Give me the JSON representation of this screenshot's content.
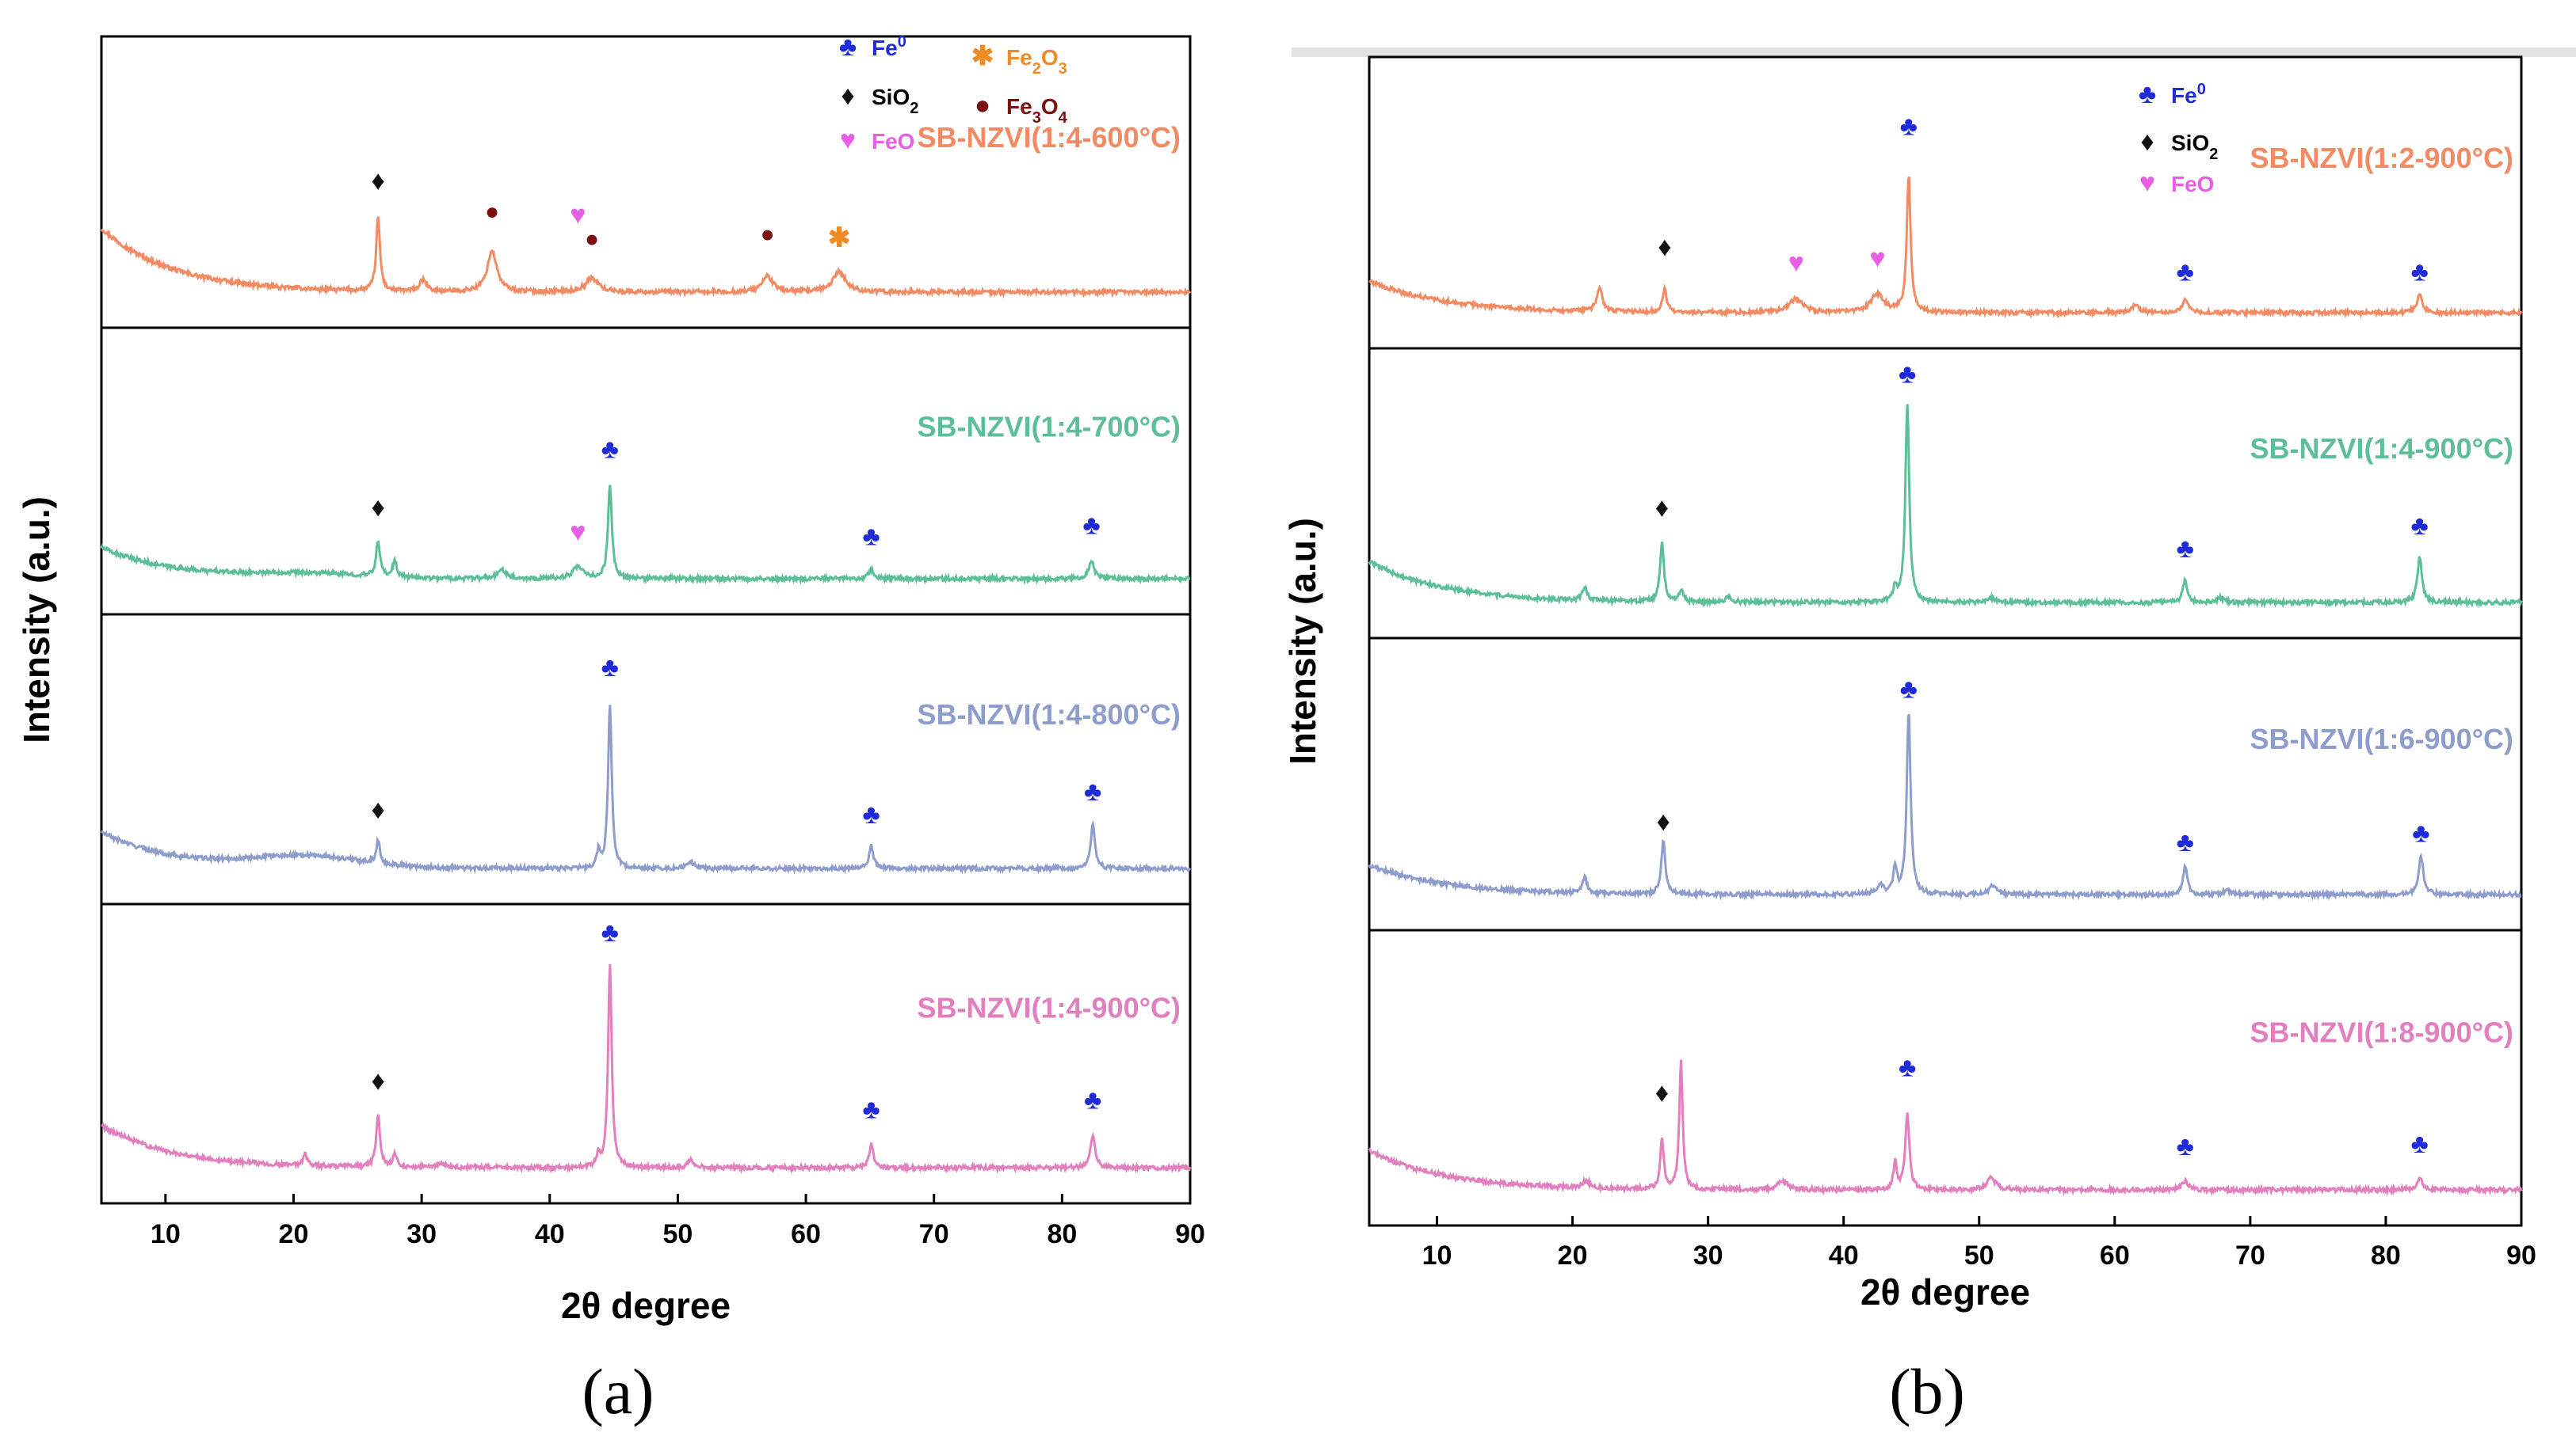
{
  "figure": {
    "panel_labels": [
      "(a)",
      "(b)"
    ]
  },
  "colors": {
    "fe0": "#1f2bd8",
    "sio2": "#111111",
    "fe2o3": "#f08a24",
    "fe3o4": "#7a1010",
    "feo": "#e85fe6",
    "orange": "#f28b63",
    "green": "#5cbf98",
    "blue": "#8f9dcd",
    "pink": "#e27fbe"
  },
  "markers": {
    "fe0": "♣",
    "sio2": "♦",
    "fe2o3": "✱",
    "fe3o4": "●",
    "feo": "♥"
  },
  "chart_data": [
    {
      "type": "line",
      "id": "a",
      "label": "(a)",
      "xlabel": "2θ degree",
      "ylabel": "Intensity (a.u.)",
      "xlim": [
        5,
        90
      ],
      "xticks": [
        10,
        20,
        30,
        40,
        50,
        60,
        70,
        80,
        90
      ],
      "legend": [
        {
          "key": "fe0",
          "label": "Fe",
          "sup": "0",
          "sub": ""
        },
        {
          "key": "fe2o3",
          "label": "Fe",
          "sub": "2",
          "label2": "O",
          "sub2": "3"
        },
        {
          "key": "sio2",
          "label": "SiO",
          "sub": "2"
        },
        {
          "key": "fe3o4",
          "label": "Fe",
          "sub": "3",
          "label2": "O",
          "sub2": "4"
        },
        {
          "key": "feo",
          "label": "FeO",
          "sub": ""
        }
      ],
      "series": [
        {
          "name": "SB-NZVI(1:4-600°C)",
          "color": "orange",
          "start": 0.28,
          "end": 0.0,
          "hump": 0.0,
          "peaks": [
            [
              26.6,
              0.32,
              0.18
            ],
            [
              30.1,
              0.05,
              0.3
            ],
            [
              35.5,
              0.18,
              0.45
            ],
            [
              43.3,
              0.06,
              0.6
            ],
            [
              57.0,
              0.07,
              0.5
            ],
            [
              62.6,
              0.09,
              0.6
            ]
          ],
          "markers": [
            [
              "sio2",
              26.6,
              0.45
            ],
            [
              "fe3o4",
              35.5,
              0.32
            ],
            [
              "feo",
              42.2,
              0.3
            ],
            [
              "fe3o4",
              43.3,
              0.2
            ],
            [
              "fe3o4",
              57.0,
              0.22
            ],
            [
              "fe2o3",
              62.6,
              0.2
            ]
          ]
        },
        {
          "name": "SB-NZVI(1:4-700°C)",
          "color": "green",
          "start": 0.14,
          "end": 0.0,
          "hump": 0.02,
          "peaks": [
            [
              26.6,
              0.16,
              0.18
            ],
            [
              27.9,
              0.07,
              0.2
            ],
            [
              36.3,
              0.04,
              0.4
            ],
            [
              42.2,
              0.05,
              0.5
            ],
            [
              44.7,
              0.42,
              0.18
            ],
            [
              65.1,
              0.04,
              0.25
            ],
            [
              82.3,
              0.08,
              0.25
            ]
          ],
          "markers": [
            [
              "sio2",
              26.6,
              0.28
            ],
            [
              "feo",
              42.2,
              0.17
            ],
            [
              "fe0",
              44.7,
              0.54
            ],
            [
              "fe0",
              65.1,
              0.15
            ],
            [
              "fe0",
              82.3,
              0.2
            ]
          ]
        },
        {
          "name": "SB-NZVI(1:4-800°C)",
          "color": "blue",
          "start": 0.16,
          "end": 0.0,
          "hump": 0.05,
          "peaks": [
            [
              26.6,
              0.1,
              0.18
            ],
            [
              43.8,
              0.07,
              0.15
            ],
            [
              44.7,
              0.73,
              0.17
            ],
            [
              51.0,
              0.03,
              0.3
            ],
            [
              65.1,
              0.1,
              0.2
            ],
            [
              82.4,
              0.2,
              0.2
            ]
          ],
          "markers": [
            [
              "sio2",
              26.6,
              0.22
            ],
            [
              "fe0",
              44.7,
              0.85
            ],
            [
              "fe0",
              65.1,
              0.2
            ],
            [
              "fe0",
              82.4,
              0.3
            ]
          ]
        },
        {
          "name": "SB-NZVI(1:4-900°C)",
          "color": "pink",
          "start": 0.18,
          "end": 0.0,
          "hump": 0.0,
          "peaks": [
            [
              20.9,
              0.05,
              0.2
            ],
            [
              26.6,
              0.22,
              0.18
            ],
            [
              27.9,
              0.05,
              0.2
            ],
            [
              31.5,
              0.02,
              0.3
            ],
            [
              43.8,
              0.05,
              0.15
            ],
            [
              44.7,
              0.86,
              0.17
            ],
            [
              51.0,
              0.03,
              0.3
            ],
            [
              65.1,
              0.1,
              0.2
            ],
            [
              82.4,
              0.13,
              0.22
            ]
          ],
          "markers": [
            [
              "sio2",
              26.6,
              0.33
            ],
            [
              "fe0",
              44.7,
              0.96
            ],
            [
              "fe0",
              65.1,
              0.21
            ],
            [
              "fe0",
              82.4,
              0.25
            ]
          ]
        }
      ]
    },
    {
      "type": "line",
      "id": "b",
      "label": "(b)",
      "xlabel": "2θ degree",
      "ylabel": "Intensity (a.u.)",
      "xlim": [
        5,
        90
      ],
      "xticks": [
        10,
        20,
        30,
        40,
        50,
        60,
        70,
        80,
        90
      ],
      "legend": [
        {
          "key": "fe0",
          "label": "Fe",
          "sup": "0",
          "sub": ""
        },
        {
          "key": "sio2",
          "label": "SiO",
          "sub": "2"
        },
        {
          "key": "feo",
          "label": "FeO",
          "sub": ""
        }
      ],
      "series": [
        {
          "name": "SB-NZVI(1:2-900°C)",
          "color": "orange",
          "start": 0.14,
          "end": 0.0,
          "hump": 0.0,
          "peaks": [
            [
              22.0,
              0.1,
              0.25
            ],
            [
              26.8,
              0.1,
              0.18
            ],
            [
              36.5,
              0.06,
              0.6
            ],
            [
              42.5,
              0.08,
              0.6
            ],
            [
              44.8,
              0.6,
              0.17
            ],
            [
              61.5,
              0.03,
              0.4
            ],
            [
              65.2,
              0.06,
              0.25
            ],
            [
              82.5,
              0.08,
              0.25
            ]
          ],
          "markers": [
            [
              "sio2",
              26.8,
              0.25
            ],
            [
              "feo",
              36.5,
              0.18
            ],
            [
              "feo",
              42.5,
              0.2
            ],
            [
              "fe0",
              44.8,
              0.78
            ],
            [
              "fe0",
              65.2,
              0.14
            ],
            [
              "fe0",
              82.5,
              0.14
            ]
          ]
        },
        {
          "name": "SB-NZVI(1:4-900°C)",
          "color": "green",
          "start": 0.18,
          "end": 0.0,
          "hump": 0.0,
          "peaks": [
            [
              20.9,
              0.06,
              0.2
            ],
            [
              26.6,
              0.26,
              0.17
            ],
            [
              28.0,
              0.05,
              0.2
            ],
            [
              31.5,
              0.02,
              0.3
            ],
            [
              43.8,
              0.06,
              0.15
            ],
            [
              44.7,
              0.88,
              0.17
            ],
            [
              50.9,
              0.02,
              0.3
            ],
            [
              65.2,
              0.1,
              0.2
            ],
            [
              67.8,
              0.02,
              0.3
            ],
            [
              82.5,
              0.2,
              0.2
            ]
          ],
          "markers": [
            [
              "sio2",
              26.6,
              0.38
            ],
            [
              "fe0",
              44.7,
              0.97
            ],
            [
              "fe0",
              65.2,
              0.2
            ],
            [
              "fe0",
              82.5,
              0.3
            ]
          ]
        },
        {
          "name": "SB-NZVI(1:6-900°C)",
          "color": "blue",
          "start": 0.13,
          "end": 0.0,
          "hump": 0.0,
          "peaks": [
            [
              20.9,
              0.07,
              0.2
            ],
            [
              26.7,
              0.24,
              0.17
            ],
            [
              42.7,
              0.04,
              0.3
            ],
            [
              43.8,
              0.12,
              0.15
            ],
            [
              44.8,
              0.8,
              0.17
            ],
            [
              51.0,
              0.04,
              0.3
            ],
            [
              65.2,
              0.12,
              0.2
            ],
            [
              68.3,
              0.02,
              0.3
            ],
            [
              82.6,
              0.17,
              0.2
            ]
          ],
          "markers": [
            [
              "sio2",
              26.7,
              0.28
            ],
            [
              "fe0",
              44.8,
              0.86
            ],
            [
              "fe0",
              65.2,
              0.19
            ],
            [
              "fe0",
              82.6,
              0.23
            ]
          ]
        },
        {
          "name": "SB-NZVI(1:8-900°C)",
          "color": "pink",
          "start": 0.17,
          "end": 0.0,
          "hump": 0.0,
          "peaks": [
            [
              21.0,
              0.03,
              0.3
            ],
            [
              26.6,
              0.22,
              0.15
            ],
            [
              28.0,
              0.55,
              0.15
            ],
            [
              35.5,
              0.04,
              0.4
            ],
            [
              43.8,
              0.12,
              0.15
            ],
            [
              44.7,
              0.33,
              0.18
            ],
            [
              50.9,
              0.05,
              0.4
            ],
            [
              65.2,
              0.04,
              0.25
            ],
            [
              82.5,
              0.05,
              0.25
            ]
          ],
          "markers": [
            [
              "sio2",
              26.6,
              0.38
            ],
            [
              "fe0",
              44.7,
              0.49
            ],
            [
              "fe0",
              65.2,
              0.15
            ],
            [
              "fe0",
              82.5,
              0.16
            ]
          ]
        }
      ]
    }
  ]
}
